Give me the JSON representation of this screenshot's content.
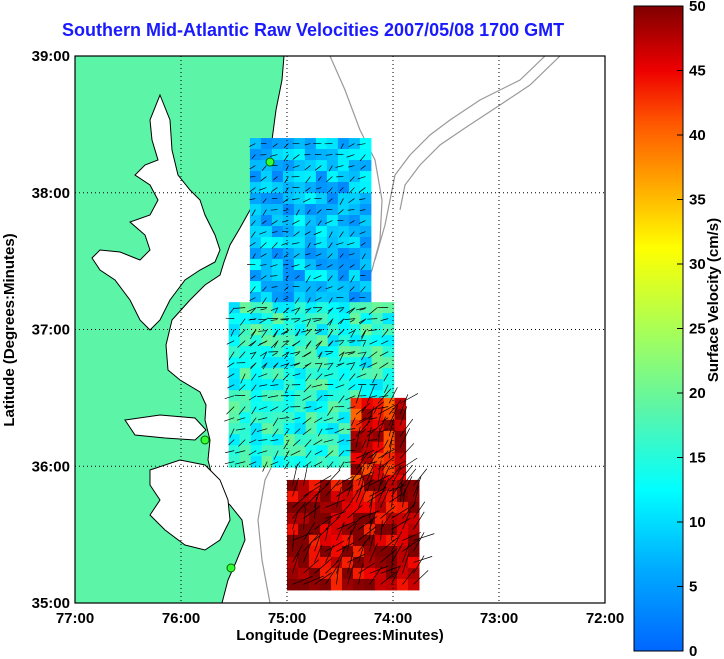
{
  "chart_data": {
    "type": "heatmap",
    "title": "Southern Mid-Atlantic Raw Velocities 2007/05/08 1700 GMT",
    "xlabel": "Longitude (Degrees:Minutes)",
    "ylabel": "Latitude (Degrees:Minutes)",
    "xticks": [
      "77:00",
      "76:00",
      "75:00",
      "74:00",
      "73:00",
      "72:00"
    ],
    "yticks": [
      "39:00",
      "38:00",
      "37:00",
      "36:00",
      "35:00"
    ],
    "xlim": [
      -77,
      -72
    ],
    "ylim": [
      35,
      39
    ],
    "grid": true,
    "colorbar": {
      "label": "Surface Velocity (cm/s)",
      "range": [
        0,
        50
      ],
      "ticks": [
        "50",
        "45",
        "40",
        "35",
        "30",
        "25",
        "20",
        "15",
        "10",
        "5",
        "0"
      ]
    },
    "land_color": "#5cf5a8",
    "regions": [
      {
        "lon_range": [
          -75.35,
          -74.3
        ],
        "lat_range": [
          36.75,
          38.4
        ],
        "speed": 8
      },
      {
        "lon_range": [
          -75.55,
          -74.0
        ],
        "lat_range": [
          36.0,
          37.2
        ],
        "speed": 15
      },
      {
        "lon_range": [
          -74.4,
          -73.9
        ],
        "lat_range": [
          35.7,
          36.5
        ],
        "speed": 45
      },
      {
        "lon_range": [
          -75.0,
          -73.8
        ],
        "lat_range": [
          35.15,
          35.9
        ],
        "speed": 48
      }
    ]
  }
}
